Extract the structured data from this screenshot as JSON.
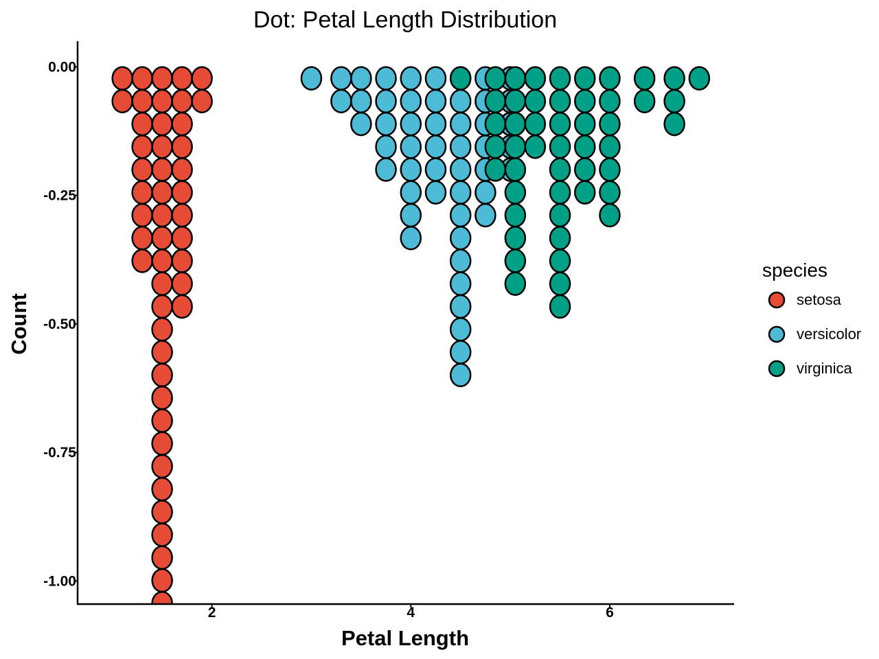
{
  "chart_data": {
    "type": "dotplot",
    "title": "Dot: Petal Length Distribution",
    "xlabel": "Petal Length",
    "ylabel": "Count",
    "xlim": [
      0.65,
      7.25
    ],
    "ylim": [
      -1.045,
      0.05
    ],
    "x_ticks": [
      {
        "value": 2,
        "label": "2"
      },
      {
        "value": 4,
        "label": "4"
      },
      {
        "value": 6,
        "label": "6"
      }
    ],
    "y_ticks": [
      {
        "value": 0,
        "label": "0.00"
      },
      {
        "value": -0.25,
        "label": "-0.25"
      },
      {
        "value": -0.5,
        "label": "-0.50"
      },
      {
        "value": -0.75,
        "label": "-0.75"
      },
      {
        "value": -1.0,
        "label": "-1.00"
      }
    ],
    "dot_step": 0.0444,
    "grid": false,
    "legend": {
      "title": "species",
      "position": "right",
      "entries": [
        {
          "name": "setosa",
          "color": "#E64B35"
        },
        {
          "name": "versicolor",
          "color": "#4DBBD5"
        },
        {
          "name": "virginica",
          "color": "#00A087"
        }
      ]
    },
    "series": [
      {
        "name": "setosa",
        "color": "#E64B35",
        "stacks": [
          {
            "x": 1.1,
            "count": 2
          },
          {
            "x": 1.3,
            "count": 9
          },
          {
            "x": 1.5,
            "count": 24
          },
          {
            "x": 1.7,
            "count": 11
          },
          {
            "x": 1.9,
            "count": 2
          }
        ]
      },
      {
        "name": "versicolor",
        "color": "#4DBBD5",
        "stacks": [
          {
            "x": 3.0,
            "count": 1
          },
          {
            "x": 3.3,
            "count": 2
          },
          {
            "x": 3.5,
            "count": 3
          },
          {
            "x": 3.75,
            "count": 5
          },
          {
            "x": 4.0,
            "count": 8
          },
          {
            "x": 4.25,
            "count": 6
          },
          {
            "x": 4.5,
            "count": 14
          },
          {
            "x": 4.75,
            "count": 7
          },
          {
            "x": 5.0,
            "count": 5
          }
        ]
      },
      {
        "name": "virginica",
        "color": "#00A087",
        "stacks": [
          {
            "x": 4.5,
            "count": 1
          },
          {
            "x": 4.85,
            "count": 5
          },
          {
            "x": 5.05,
            "count": 10
          },
          {
            "x": 5.25,
            "count": 4
          },
          {
            "x": 5.5,
            "count": 11
          },
          {
            "x": 5.75,
            "count": 6
          },
          {
            "x": 6.0,
            "count": 7
          },
          {
            "x": 6.35,
            "count": 2
          },
          {
            "x": 6.65,
            "count": 3
          },
          {
            "x": 6.9,
            "count": 1
          }
        ]
      }
    ]
  }
}
